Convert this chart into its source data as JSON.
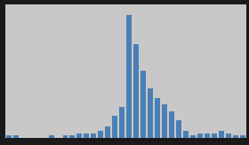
{
  "bar_values": [
    1,
    1,
    0,
    0,
    0,
    0,
    1,
    0,
    1,
    1,
    2,
    2,
    2,
    3,
    5,
    10,
    14,
    55,
    42,
    30,
    22,
    18,
    15,
    12,
    8,
    3,
    1,
    2,
    2,
    2,
    3,
    2,
    1,
    1
  ],
  "bar_color": "#4a7fb5",
  "fig_bg_color": "#1a1a1a",
  "plot_bg_color": "#c8c8c8",
  "grid_color": "#ffffff",
  "ylim": [
    0,
    60
  ],
  "grid_linewidth": 0.6
}
